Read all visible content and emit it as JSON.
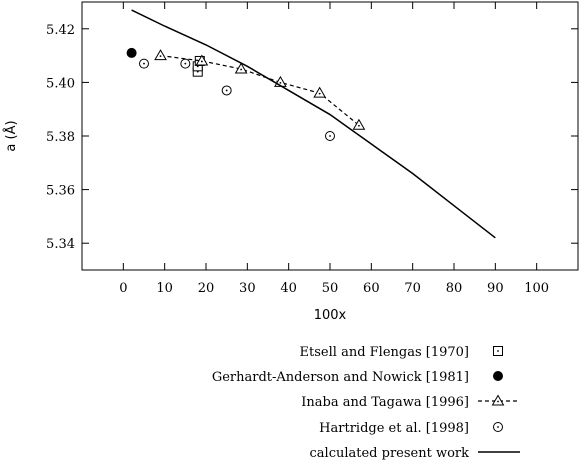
{
  "chart_data": {
    "type": "line",
    "xlabel": "100x",
    "ylabel": "a (Å)",
    "xlim": [
      -10,
      110
    ],
    "ylim": [
      5.33,
      5.43
    ],
    "xticks": [
      0,
      10,
      20,
      30,
      40,
      50,
      60,
      70,
      80,
      90,
      100
    ],
    "yticks": [
      5.34,
      5.36,
      5.38,
      5.4,
      5.42
    ],
    "ytick_labels": [
      "5.34",
      "5.36",
      "5.38",
      "5.40",
      "5.42"
    ],
    "legend_position": "bottom-right, below plot",
    "series": [
      {
        "name": "Etsell and Flengas [1970]",
        "marker": "dotted-square",
        "style": "markers",
        "points": [
          [
            18,
            5.404
          ],
          [
            18,
            5.406
          ],
          [
            18.5,
            5.408
          ]
        ]
      },
      {
        "name": "Gerhardt-Anderson and Nowick [1981]",
        "marker": "filled-circle",
        "style": "markers",
        "points": [
          [
            2,
            5.411
          ]
        ]
      },
      {
        "name": "Inaba and Tagawa [1996]",
        "marker": "dotted-triangle",
        "style": "dashed-line-markers",
        "points": [
          [
            9,
            5.41
          ],
          [
            19,
            5.408
          ],
          [
            28.5,
            5.405
          ],
          [
            38,
            5.4
          ],
          [
            47.5,
            5.396
          ],
          [
            57,
            5.384
          ]
        ]
      },
      {
        "name": "Hartridge et al. [1998]",
        "marker": "dotted-circle",
        "style": "markers",
        "points": [
          [
            5,
            5.407
          ],
          [
            15,
            5.407
          ],
          [
            25,
            5.397
          ],
          [
            50,
            5.38
          ]
        ]
      },
      {
        "name": "calculated present work",
        "marker": "none",
        "style": "solid-line",
        "points": [
          [
            2,
            5.427
          ],
          [
            10,
            5.421
          ],
          [
            20,
            5.414
          ],
          [
            30,
            5.406
          ],
          [
            40,
            5.397
          ],
          [
            50,
            5.388
          ],
          [
            60,
            5.377
          ],
          [
            70,
            5.366
          ],
          [
            80,
            5.354
          ],
          [
            90,
            5.342
          ]
        ]
      }
    ]
  }
}
